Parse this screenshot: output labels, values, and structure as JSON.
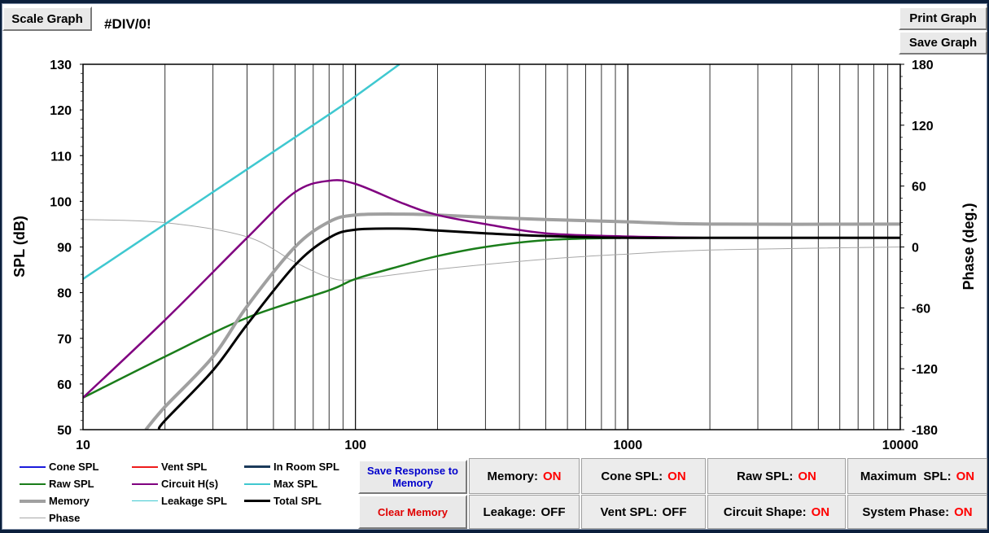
{
  "toolbar": {
    "scale_label": "Scale Graph",
    "print_label": "Print Graph",
    "save_label": "Save Graph",
    "error_text": "#DIV/0!"
  },
  "chart_data": {
    "type": "line",
    "xscale": "log",
    "xlim": [
      10,
      10000
    ],
    "xticks": [
      "10",
      "100",
      "1000",
      "10000"
    ],
    "ylabel": "SPL (dB)",
    "ylim": [
      50,
      130
    ],
    "yticks": [
      "50",
      "60",
      "70",
      "80",
      "90",
      "100",
      "110",
      "120",
      "130"
    ],
    "y2label": "Phase (deg.)",
    "y2lim": [
      -180,
      180
    ],
    "y2ticks": [
      "-180",
      "-120",
      "-60",
      "0",
      "60",
      "120",
      "180"
    ],
    "grid": "vertical",
    "series": [
      {
        "name": "Max SPL",
        "color": "#3fc8d0",
        "width": 2.5,
        "x": [
          10,
          20,
          40,
          80,
          100,
          145
        ],
        "y": [
          83,
          95,
          107,
          119,
          123,
          130
        ]
      },
      {
        "name": "Circuit H(s)",
        "color": "#800080",
        "width": 2.5,
        "x": [
          10,
          20,
          40,
          60,
          80,
          100,
          150,
          200,
          300,
          500,
          1000,
          2000
        ],
        "y": [
          57,
          74,
          92,
          102,
          104.5,
          103.8,
          99.5,
          97,
          95,
          93,
          92.3,
          92
        ]
      },
      {
        "name": "Raw SPL",
        "color": "#1a7d1a",
        "width": 2.5,
        "x": [
          10,
          20,
          40,
          80,
          100,
          150,
          200,
          300,
          500,
          1000,
          2000
        ],
        "y": [
          57,
          66,
          74.5,
          80.5,
          83,
          86,
          88,
          90,
          91.5,
          92,
          92
        ]
      },
      {
        "name": "Memory",
        "color": "#a0a0a0",
        "width": 4,
        "x": [
          17,
          20,
          30,
          40,
          60,
          80,
          100,
          150,
          200,
          300,
          500,
          1000,
          2000,
          10000
        ],
        "y": [
          50,
          55,
          66,
          77,
          90,
          95.5,
          97,
          97.2,
          97,
          96.5,
          96,
          95.5,
          95,
          95
        ]
      },
      {
        "name": "Total SPL",
        "color": "#000000",
        "width": 3,
        "x": [
          19,
          20,
          30,
          40,
          60,
          80,
          100,
          150,
          200,
          300,
          500,
          1000,
          2000,
          10000
        ],
        "y": [
          50,
          52,
          63,
          73,
          86,
          92,
          93.8,
          94,
          93.6,
          93,
          92.4,
          92,
          92,
          92
        ]
      },
      {
        "name": "Phase",
        "color": "#a8a8a8",
        "width": 1,
        "axis": "y2",
        "x": [
          10,
          20,
          40,
          60,
          80,
          100,
          200,
          500,
          1000,
          2000,
          10000
        ],
        "y": [
          27,
          24,
          10,
          -15,
          -30,
          -32,
          -22,
          -12,
          -7,
          -3,
          0
        ]
      }
    ]
  },
  "legend": [
    {
      "label": "Cone SPL",
      "color": "#1a1adc",
      "w": 2
    },
    {
      "label": "Vent SPL",
      "color": "#ee1c1c",
      "w": 2
    },
    {
      "label": "In Room SPL",
      "color": "#1b3a5a",
      "w": 3
    },
    {
      "label": "Raw SPL",
      "color": "#1a7d1a",
      "w": 2
    },
    {
      "label": "Circuit H(s)",
      "color": "#800080",
      "w": 2
    },
    {
      "label": "Max SPL",
      "color": "#3fc8d0",
      "w": 2
    },
    {
      "label": "Memory",
      "color": "#a0a0a0",
      "w": 4
    },
    {
      "label": "Leakage SPL",
      "color": "#3fc8d0",
      "w": 1
    },
    {
      "label": "Total SPL",
      "color": "#000000",
      "w": 3
    },
    {
      "label": "Phase",
      "color": "#a8a8a8",
      "w": 1
    }
  ],
  "controls": {
    "save_response": "Save Response to Memory",
    "clear_memory": "Clear Memory",
    "memory": {
      "label": "Memory:",
      "state": "ON"
    },
    "cone_spl": {
      "label": "Cone SPL:",
      "state": "ON"
    },
    "raw_spl": {
      "label": "Raw SPL:",
      "state": "ON"
    },
    "maximum_spl": {
      "label": "Maximum  SPL:",
      "state": "ON"
    },
    "leakage": {
      "label": "Leakage:",
      "state": "OFF"
    },
    "vent_spl": {
      "label": "Vent SPL:",
      "state": "OFF"
    },
    "circuit_shape": {
      "label": "Circuit Shape:",
      "state": "ON"
    },
    "system_phase": {
      "label": "System Phase:",
      "state": "ON"
    }
  },
  "colors": {
    "on": "#ff0000",
    "off": "#000000",
    "button_blue": "#0000cc",
    "button_red": "#e00000"
  }
}
